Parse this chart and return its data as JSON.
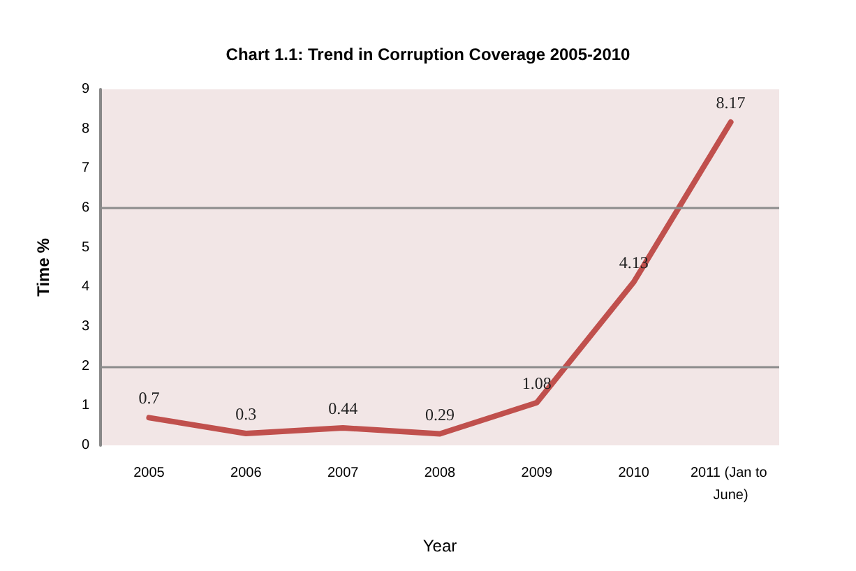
{
  "chart_data": {
    "type": "line",
    "title": "Chart 1.1: Trend in Corruption Coverage 2005-2010",
    "xlabel": "Year",
    "ylabel": "Time %",
    "categories": [
      "2005",
      "2006",
      "2007",
      "2008",
      "2009",
      "2010",
      "2011 (Jan to June)"
    ],
    "series": [
      {
        "color": "#c0504d",
        "values": [
          0.7,
          0.3,
          0.44,
          0.29,
          1.08,
          4.13,
          8.17
        ]
      }
    ],
    "ylim": [
      0,
      9
    ],
    "yticks": [
      0,
      1,
      2,
      3,
      4,
      5,
      6,
      7,
      8,
      9
    ],
    "grid": false,
    "marker": "none",
    "line_style": "solid",
    "data_labels": true,
    "ref_lines": [
      {
        "axis": "y",
        "value": 2,
        "color": "#8c8c8c"
      },
      {
        "axis": "y",
        "value": 6,
        "color": "#8c8c8c"
      }
    ]
  }
}
